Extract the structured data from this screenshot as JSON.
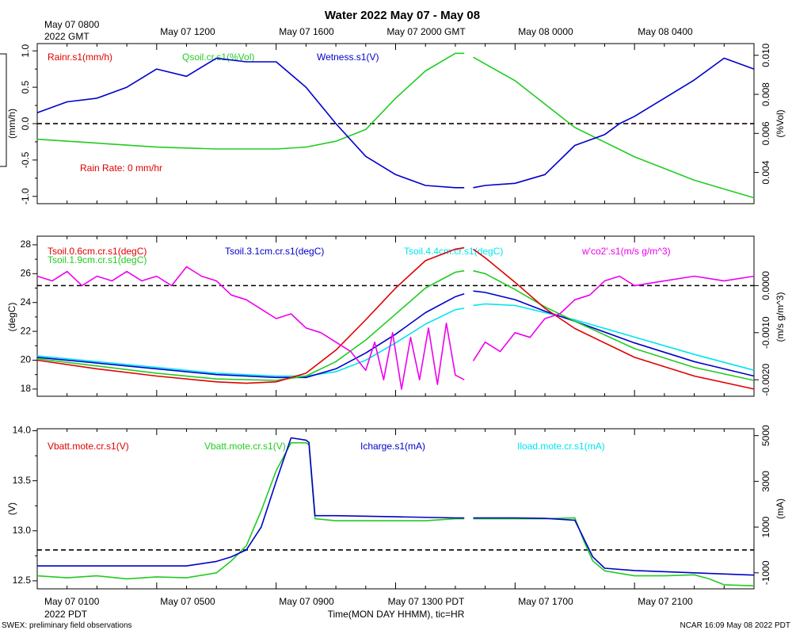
{
  "title": "Water 2022 May 07 - May 08",
  "top_axis": {
    "corner_line1": "May 07 0800",
    "corner_line2": "2022 GMT",
    "labels": [
      "May 07 1200",
      "May 07 1600",
      "May 07 2000 GMT",
      "May 08 0000",
      "May 08 0400"
    ]
  },
  "bottom_axis": {
    "corner_line1": "May 07 0100",
    "corner_line2": "2022 PDT",
    "labels": [
      "May 07 0500",
      "May 07 0900",
      "May 07 1300 PDT",
      "May 07 1700",
      "May 07 2100"
    ],
    "xlabel": "Time(MON DAY HHMM), tic=HR"
  },
  "footer": {
    "left": "SWEX: preliminary field observations",
    "right": "NCAR 16:09 May 08 2022 PDT"
  },
  "colors": {
    "red": "#e00000",
    "green": "#22cc22",
    "blue": "#0000cc",
    "cyan": "#00e5ee",
    "magenta": "#ee00ee"
  },
  "chart_data": [
    {
      "type": "line",
      "name": "panel-1",
      "x_units": "hours since May 07 0100 PDT",
      "x_range": [
        0,
        24
      ],
      "gap_hours": [
        14.3,
        14.6
      ],
      "left_axis": {
        "label": "(mm/h)",
        "range": [
          -1.1,
          1.1
        ],
        "ticks": [
          "-1.0",
          "-0.5",
          "0.0",
          "0.5",
          "1.0"
        ],
        "tick_values": [
          -1.0,
          -0.5,
          0.0,
          0.5,
          1.0
        ]
      },
      "right_axis": {
        "label": "(%Vol)",
        "range": [
          0.0024,
          0.0106
        ],
        "ticks": [
          "0.004",
          "0.006",
          "0.008",
          "0.010"
        ],
        "tick_values": [
          0.004,
          0.006,
          0.008,
          0.01
        ]
      },
      "legend": [
        {
          "text": "Rainr.s1(mm/h)",
          "color": "#e00000"
        },
        {
          "text": "Qsoil.cr.s1(%Vol)",
          "color": "#22cc22"
        },
        {
          "text": "Wetness.s1(V)",
          "color": "#0000cc"
        }
      ],
      "annotation": "Rain Rate: 0 mm/hr",
      "series": [
        {
          "name": "Rainr.s1",
          "axis": "left",
          "color": "#e00000",
          "x": [
            0,
            24
          ],
          "y": [
            0,
            0
          ]
        },
        {
          "name": "Qsoil.cr.s1",
          "axis": "right",
          "color": "#22cc22",
          "x": [
            0,
            2,
            4,
            6,
            8,
            9,
            10,
            11,
            12,
            13,
            14,
            14.3,
            14.6,
            16,
            18,
            20,
            22,
            24
          ],
          "y": [
            0.0057,
            0.0055,
            0.0053,
            0.0052,
            0.0052,
            0.0053,
            0.0056,
            0.0062,
            0.0078,
            0.0092,
            0.0101,
            0.0101,
            0.0099,
            0.0087,
            0.0063,
            0.0048,
            0.0036,
            0.0027
          ]
        },
        {
          "name": "Wetness.s1",
          "axis": "left",
          "color": "#0000cc",
          "x": [
            0,
            1,
            2,
            3,
            4,
            5,
            6,
            7,
            8,
            9,
            10,
            11,
            12,
            13,
            14,
            14.3,
            14.6,
            15,
            16,
            17,
            18,
            19,
            19.5,
            20,
            21,
            22,
            23,
            24
          ],
          "y": [
            0.15,
            0.3,
            0.35,
            0.5,
            0.75,
            0.65,
            0.9,
            0.85,
            0.85,
            0.5,
            0.0,
            -0.45,
            -0.7,
            -0.85,
            -0.88,
            -0.88,
            -0.88,
            -0.85,
            -0.82,
            -0.7,
            -0.3,
            -0.15,
            0.0,
            0.1,
            0.35,
            0.6,
            0.9,
            0.75
          ]
        }
      ]
    },
    {
      "type": "line",
      "name": "panel-2",
      "x_units": "hours since May 07 0100 PDT",
      "x_range": [
        0,
        24
      ],
      "gap_hours": [
        14.3,
        14.6
      ],
      "left_axis": {
        "label": "(degC)",
        "range": [
          17.5,
          28.6
        ],
        "ticks": [
          "18",
          "20",
          "22",
          "24",
          "26",
          "28"
        ],
        "tick_values": [
          18,
          20,
          22,
          24,
          26,
          28
        ]
      },
      "right_axis": {
        "label": "(m/s g/m^3)",
        "range": [
          -0.00235,
          0.00105
        ],
        "ticks": [
          "-0.0020",
          "-0.0010",
          "0.0000"
        ],
        "tick_values": [
          -0.002,
          -0.001,
          0.0
        ]
      },
      "legend": [
        {
          "text": "Tsoil.0.6cm.cr.s1(degC)",
          "color": "#e00000"
        },
        {
          "text": "Tsoil.1.9cm.cr.s1(degC)",
          "color": "#22cc22"
        },
        {
          "text": "Tsoil.3.1cm.cr.s1(degC)",
          "color": "#0000cc"
        },
        {
          "text": "Tsoil.4.4cm.cr.s1(degC)",
          "color": "#00e5ee"
        },
        {
          "text": "w'co2'.s1(m/s g/m^3)",
          "color": "#ee00ee"
        }
      ],
      "series": [
        {
          "name": "Tsoil.4.4cm.cr.s1",
          "axis": "left",
          "color": "#00e5ee",
          "x": [
            0,
            2,
            4,
            6,
            8,
            9,
            10,
            11,
            12,
            13,
            14,
            14.3,
            14.6,
            15,
            16,
            17,
            18,
            20,
            22,
            24
          ],
          "y": [
            20.3,
            19.9,
            19.5,
            19.1,
            18.9,
            18.9,
            19.2,
            20.0,
            21.2,
            22.5,
            23.5,
            23.6,
            23.8,
            23.9,
            23.8,
            23.3,
            22.8,
            21.6,
            20.4,
            19.3
          ]
        },
        {
          "name": "Tsoil.3.1cm.cr.s1",
          "axis": "left",
          "color": "#0000cc",
          "x": [
            0,
            2,
            4,
            6,
            8,
            9,
            10,
            11,
            12,
            13,
            14,
            14.3,
            14.6,
            15,
            16,
            17,
            18,
            20,
            22,
            24
          ],
          "y": [
            20.2,
            19.8,
            19.4,
            19.0,
            18.8,
            18.8,
            19.4,
            20.5,
            21.8,
            23.3,
            24.4,
            24.6,
            24.8,
            24.7,
            24.2,
            23.4,
            22.7,
            21.2,
            19.9,
            18.9
          ]
        },
        {
          "name": "Tsoil.1.9cm.cr.s1",
          "axis": "left",
          "color": "#22cc22",
          "x": [
            0,
            2,
            4,
            6,
            8,
            9,
            10,
            11,
            12,
            13,
            14,
            14.3,
            14.6,
            15,
            16,
            17,
            18,
            20,
            22,
            24
          ],
          "y": [
            20.1,
            19.6,
            19.1,
            18.7,
            18.6,
            18.9,
            19.9,
            21.4,
            23.2,
            25.0,
            26.1,
            26.2,
            26.2,
            26.0,
            24.9,
            23.7,
            22.7,
            20.8,
            19.5,
            18.6
          ]
        },
        {
          "name": "Tsoil.0.6cm.cr.s1",
          "axis": "left",
          "color": "#e00000",
          "x": [
            0,
            2,
            4,
            6,
            7,
            8,
            9,
            10,
            11,
            12,
            13,
            14,
            14.3,
            14.6,
            15,
            16,
            17,
            18,
            20,
            22,
            24
          ],
          "y": [
            20.0,
            19.4,
            18.9,
            18.5,
            18.4,
            18.5,
            19.1,
            20.7,
            22.8,
            25.0,
            26.9,
            27.7,
            27.8,
            27.7,
            27.1,
            25.4,
            23.6,
            22.2,
            20.2,
            18.9,
            18.0
          ]
        },
        {
          "name": "w'co2'.s1",
          "axis": "right",
          "color": "#ee00ee",
          "x": [
            0,
            0.5,
            1,
            1.5,
            2,
            2.5,
            3,
            3.5,
            4,
            4.5,
            5,
            5.5,
            6,
            6.5,
            7,
            7.5,
            8,
            8.5,
            9,
            9.5,
            10,
            10.5,
            11,
            11.3,
            11.6,
            11.9,
            12.2,
            12.5,
            12.8,
            13.1,
            13.4,
            13.7,
            14,
            14.3,
            14.6,
            15,
            15.5,
            16,
            16.5,
            17,
            17.5,
            18,
            18.5,
            19,
            19.5,
            20,
            21,
            22,
            23,
            24
          ],
          "y": [
            0.0002,
            0.0001,
            0.0003,
            0.0,
            0.0002,
            0.0001,
            0.0003,
            0.0001,
            0.0002,
            0.0,
            0.0004,
            0.0002,
            0.0001,
            -0.0002,
            -0.0003,
            -0.0005,
            -0.0007,
            -0.0006,
            -0.0009,
            -0.001,
            -0.0012,
            -0.0014,
            -0.0018,
            -0.0012,
            -0.002,
            -0.001,
            -0.0022,
            -0.0011,
            -0.002,
            -0.0009,
            -0.0021,
            -0.0008,
            -0.0019,
            -0.002,
            -0.0016,
            -0.0012,
            -0.0014,
            -0.001,
            -0.0011,
            -0.0007,
            -0.0006,
            -0.0003,
            -0.0002,
            0.0001,
            0.0002,
            0.0,
            0.0001,
            0.0002,
            0.0001,
            0.0002
          ]
        }
      ]
    },
    {
      "type": "line",
      "name": "panel-3",
      "x_units": "hours since May 07 0100 PDT",
      "x_range": [
        0,
        24
      ],
      "gap_hours": [
        14.3,
        14.6
      ],
      "left_axis": {
        "label": "(V)",
        "range": [
          12.42,
          14.02
        ],
        "ticks": [
          "12.5",
          "13.0",
          "13.5",
          "14.0"
        ],
        "tick_values": [
          12.5,
          13.0,
          13.5,
          14.0
        ]
      },
      "right_axis": {
        "label": "(mA)",
        "range": [
          -1700,
          5300
        ],
        "ticks": [
          "-1000",
          "1000",
          "3000",
          "5000"
        ],
        "tick_values": [
          -1000,
          1000,
          3000,
          5000
        ]
      },
      "legend": [
        {
          "text": "Vbatt.mote.cr.s1(V)",
          "color": "#e00000"
        },
        {
          "text": "Vbatt.mote.cr.s1(V)",
          "color": "#22cc22"
        },
        {
          "text": "Icharge.s1(mA)",
          "color": "#0000cc"
        },
        {
          "text": "Iload.mote.cr.s1(mA)",
          "color": "#00e5ee"
        }
      ],
      "series": [
        {
          "name": "Iload.mote.cr.s1",
          "axis": "right",
          "color": "#00e5ee",
          "x": [
            0,
            24
          ],
          "y": [
            0,
            0
          ]
        },
        {
          "name": "Vbatt.mote.cr.s1 (green)",
          "axis": "left",
          "color": "#22cc22",
          "x": [
            0,
            1,
            2,
            3,
            4,
            5,
            6,
            6.5,
            7,
            7.5,
            8,
            8.5,
            9,
            9.1,
            9.3,
            10,
            11,
            12,
            13,
            14,
            14.3,
            14.6,
            16,
            17,
            18,
            18.3,
            18.6,
            19,
            20,
            21,
            22,
            22.5,
            23,
            24
          ],
          "y": [
            12.55,
            12.53,
            12.55,
            12.52,
            12.54,
            12.53,
            12.58,
            12.7,
            12.85,
            13.2,
            13.6,
            13.88,
            13.88,
            13.86,
            13.12,
            13.1,
            13.1,
            13.1,
            13.1,
            13.12,
            13.12,
            13.12,
            13.12,
            13.12,
            13.13,
            12.9,
            12.7,
            12.6,
            12.55,
            12.55,
            12.56,
            12.52,
            12.46,
            12.45
          ]
        },
        {
          "name": "Icharge.s1",
          "axis": "right",
          "color": "#0000cc",
          "x": [
            0,
            1,
            2,
            3,
            4,
            5,
            6,
            6.5,
            7,
            7.5,
            8,
            8.5,
            9,
            9.1,
            9.3,
            10,
            12,
            14,
            14.3,
            14.6,
            16,
            17,
            18,
            18.3,
            18.6,
            19,
            20,
            22,
            24
          ],
          "y": [
            -700,
            -700,
            -700,
            -700,
            -700,
            -700,
            -500,
            -300,
            0,
            1000,
            3000,
            4900,
            4800,
            4700,
            1500,
            1500,
            1450,
            1400,
            1400,
            1400,
            1400,
            1380,
            1300,
            500,
            -300,
            -800,
            -900,
            -1000,
            -1100
          ]
        }
      ]
    }
  ]
}
